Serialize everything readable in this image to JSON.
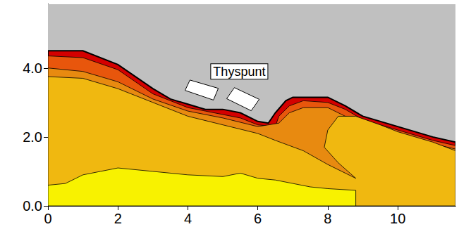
{
  "chart_data": {
    "type": "contour",
    "xlim": [
      0,
      11.65
    ],
    "ylim": [
      0,
      5.85
    ],
    "xticks": [
      0,
      2,
      4,
      6,
      8,
      10
    ],
    "yticks": [
      {
        "value": 0,
        "label": "0.0"
      },
      {
        "value": 2,
        "label": "2.0"
      },
      {
        "value": 4,
        "label": "4.0"
      }
    ],
    "regions": [
      {
        "color": "#c0c0c0",
        "points": [
          [
            0,
            0
          ],
          [
            11.65,
            0
          ],
          [
            11.65,
            5.85
          ],
          [
            0,
            5.85
          ]
        ]
      },
      {
        "color": "#d40000",
        "points": [
          [
            0,
            4.5
          ],
          [
            1,
            4.5
          ],
          [
            2,
            4.1
          ],
          [
            3,
            3.4
          ],
          [
            3.5,
            3.1
          ],
          [
            4,
            2.95
          ],
          [
            4.5,
            2.8
          ],
          [
            5,
            2.8
          ],
          [
            5.5,
            2.7
          ],
          [
            6,
            2.45
          ],
          [
            6.3,
            2.4
          ],
          [
            6.5,
            2.7
          ],
          [
            6.8,
            3.05
          ],
          [
            7,
            3.15
          ],
          [
            8,
            3.15
          ],
          [
            8.5,
            2.9
          ],
          [
            9,
            2.6
          ],
          [
            10,
            2.3
          ],
          [
            11,
            2.0
          ],
          [
            11.65,
            1.85
          ],
          [
            11.65,
            0
          ],
          [
            0,
            0
          ]
        ]
      },
      {
        "color": "#e8560c",
        "points": [
          [
            0,
            4.35
          ],
          [
            1,
            4.3
          ],
          [
            2,
            3.95
          ],
          [
            3,
            3.25
          ],
          [
            4,
            2.85
          ],
          [
            4.5,
            2.75
          ],
          [
            5,
            2.65
          ],
          [
            5.5,
            2.55
          ],
          [
            6,
            2.35
          ],
          [
            6.5,
            2.3
          ],
          [
            6.6,
            2.6
          ],
          [
            6.9,
            2.9
          ],
          [
            7.3,
            3.05
          ],
          [
            8,
            3.0
          ],
          [
            8.5,
            2.8
          ],
          [
            9,
            2.5
          ],
          [
            10,
            2.2
          ],
          [
            11,
            1.9
          ],
          [
            11.65,
            1.75
          ],
          [
            11.65,
            0
          ],
          [
            0,
            0
          ]
        ]
      },
      {
        "color": "#e88a10",
        "points": [
          [
            0,
            4.0
          ],
          [
            1,
            3.9
          ],
          [
            2,
            3.6
          ],
          [
            3,
            3.1
          ],
          [
            4,
            2.75
          ],
          [
            5,
            2.55
          ],
          [
            6,
            2.3
          ],
          [
            6.6,
            2.4
          ],
          [
            6.9,
            2.7
          ],
          [
            7.3,
            2.85
          ],
          [
            8,
            2.85
          ],
          [
            8.5,
            2.6
          ],
          [
            9,
            2.4
          ],
          [
            10,
            2.1
          ],
          [
            11,
            1.8
          ],
          [
            11.65,
            1.65
          ],
          [
            11.65,
            0
          ],
          [
            0,
            0
          ]
        ]
      },
      {
        "color": "#f0b810",
        "points": [
          [
            0,
            3.75
          ],
          [
            1,
            3.7
          ],
          [
            2,
            3.4
          ],
          [
            3,
            3.0
          ],
          [
            4,
            2.6
          ],
          [
            5,
            2.35
          ],
          [
            6,
            2.1
          ],
          [
            6.5,
            1.9
          ],
          [
            7.3,
            1.6
          ],
          [
            8,
            1.2
          ],
          [
            8.8,
            0.8
          ],
          [
            8.3,
            1.25
          ],
          [
            7.9,
            1.7
          ],
          [
            8.0,
            2.2
          ],
          [
            8.3,
            2.6
          ],
          [
            8.8,
            2.6
          ],
          [
            9.5,
            2.35
          ],
          [
            10,
            2.15
          ],
          [
            11,
            1.85
          ],
          [
            11.65,
            1.6
          ],
          [
            11.65,
            0
          ],
          [
            0,
            0
          ]
        ]
      },
      {
        "color": "#f8f200",
        "points": [
          [
            0,
            0.6
          ],
          [
            0.5,
            0.65
          ],
          [
            1,
            0.9
          ],
          [
            1.5,
            1.0
          ],
          [
            2,
            1.1
          ],
          [
            3,
            1.0
          ],
          [
            4,
            0.9
          ],
          [
            5,
            0.85
          ],
          [
            5.5,
            0.95
          ],
          [
            6,
            0.8
          ],
          [
            6.5,
            0.75
          ],
          [
            7,
            0.65
          ],
          [
            7.5,
            0.55
          ],
          [
            8,
            0.5
          ],
          [
            8.8,
            0.45
          ],
          [
            8.8,
            0
          ],
          [
            0,
            0
          ]
        ]
      }
    ],
    "buildings": [
      [
        [
          4.06,
          3.65
        ],
        [
          4.87,
          3.41
        ],
        [
          4.73,
          3.07
        ],
        [
          3.92,
          3.35
        ]
      ],
      [
        [
          5.33,
          3.43
        ],
        [
          6.04,
          3.09
        ],
        [
          5.81,
          2.76
        ],
        [
          5.11,
          3.11
        ]
      ]
    ],
    "annotations": [
      {
        "text": "Thyspunt",
        "x": 5.47,
        "y": 3.9
      }
    ]
  }
}
